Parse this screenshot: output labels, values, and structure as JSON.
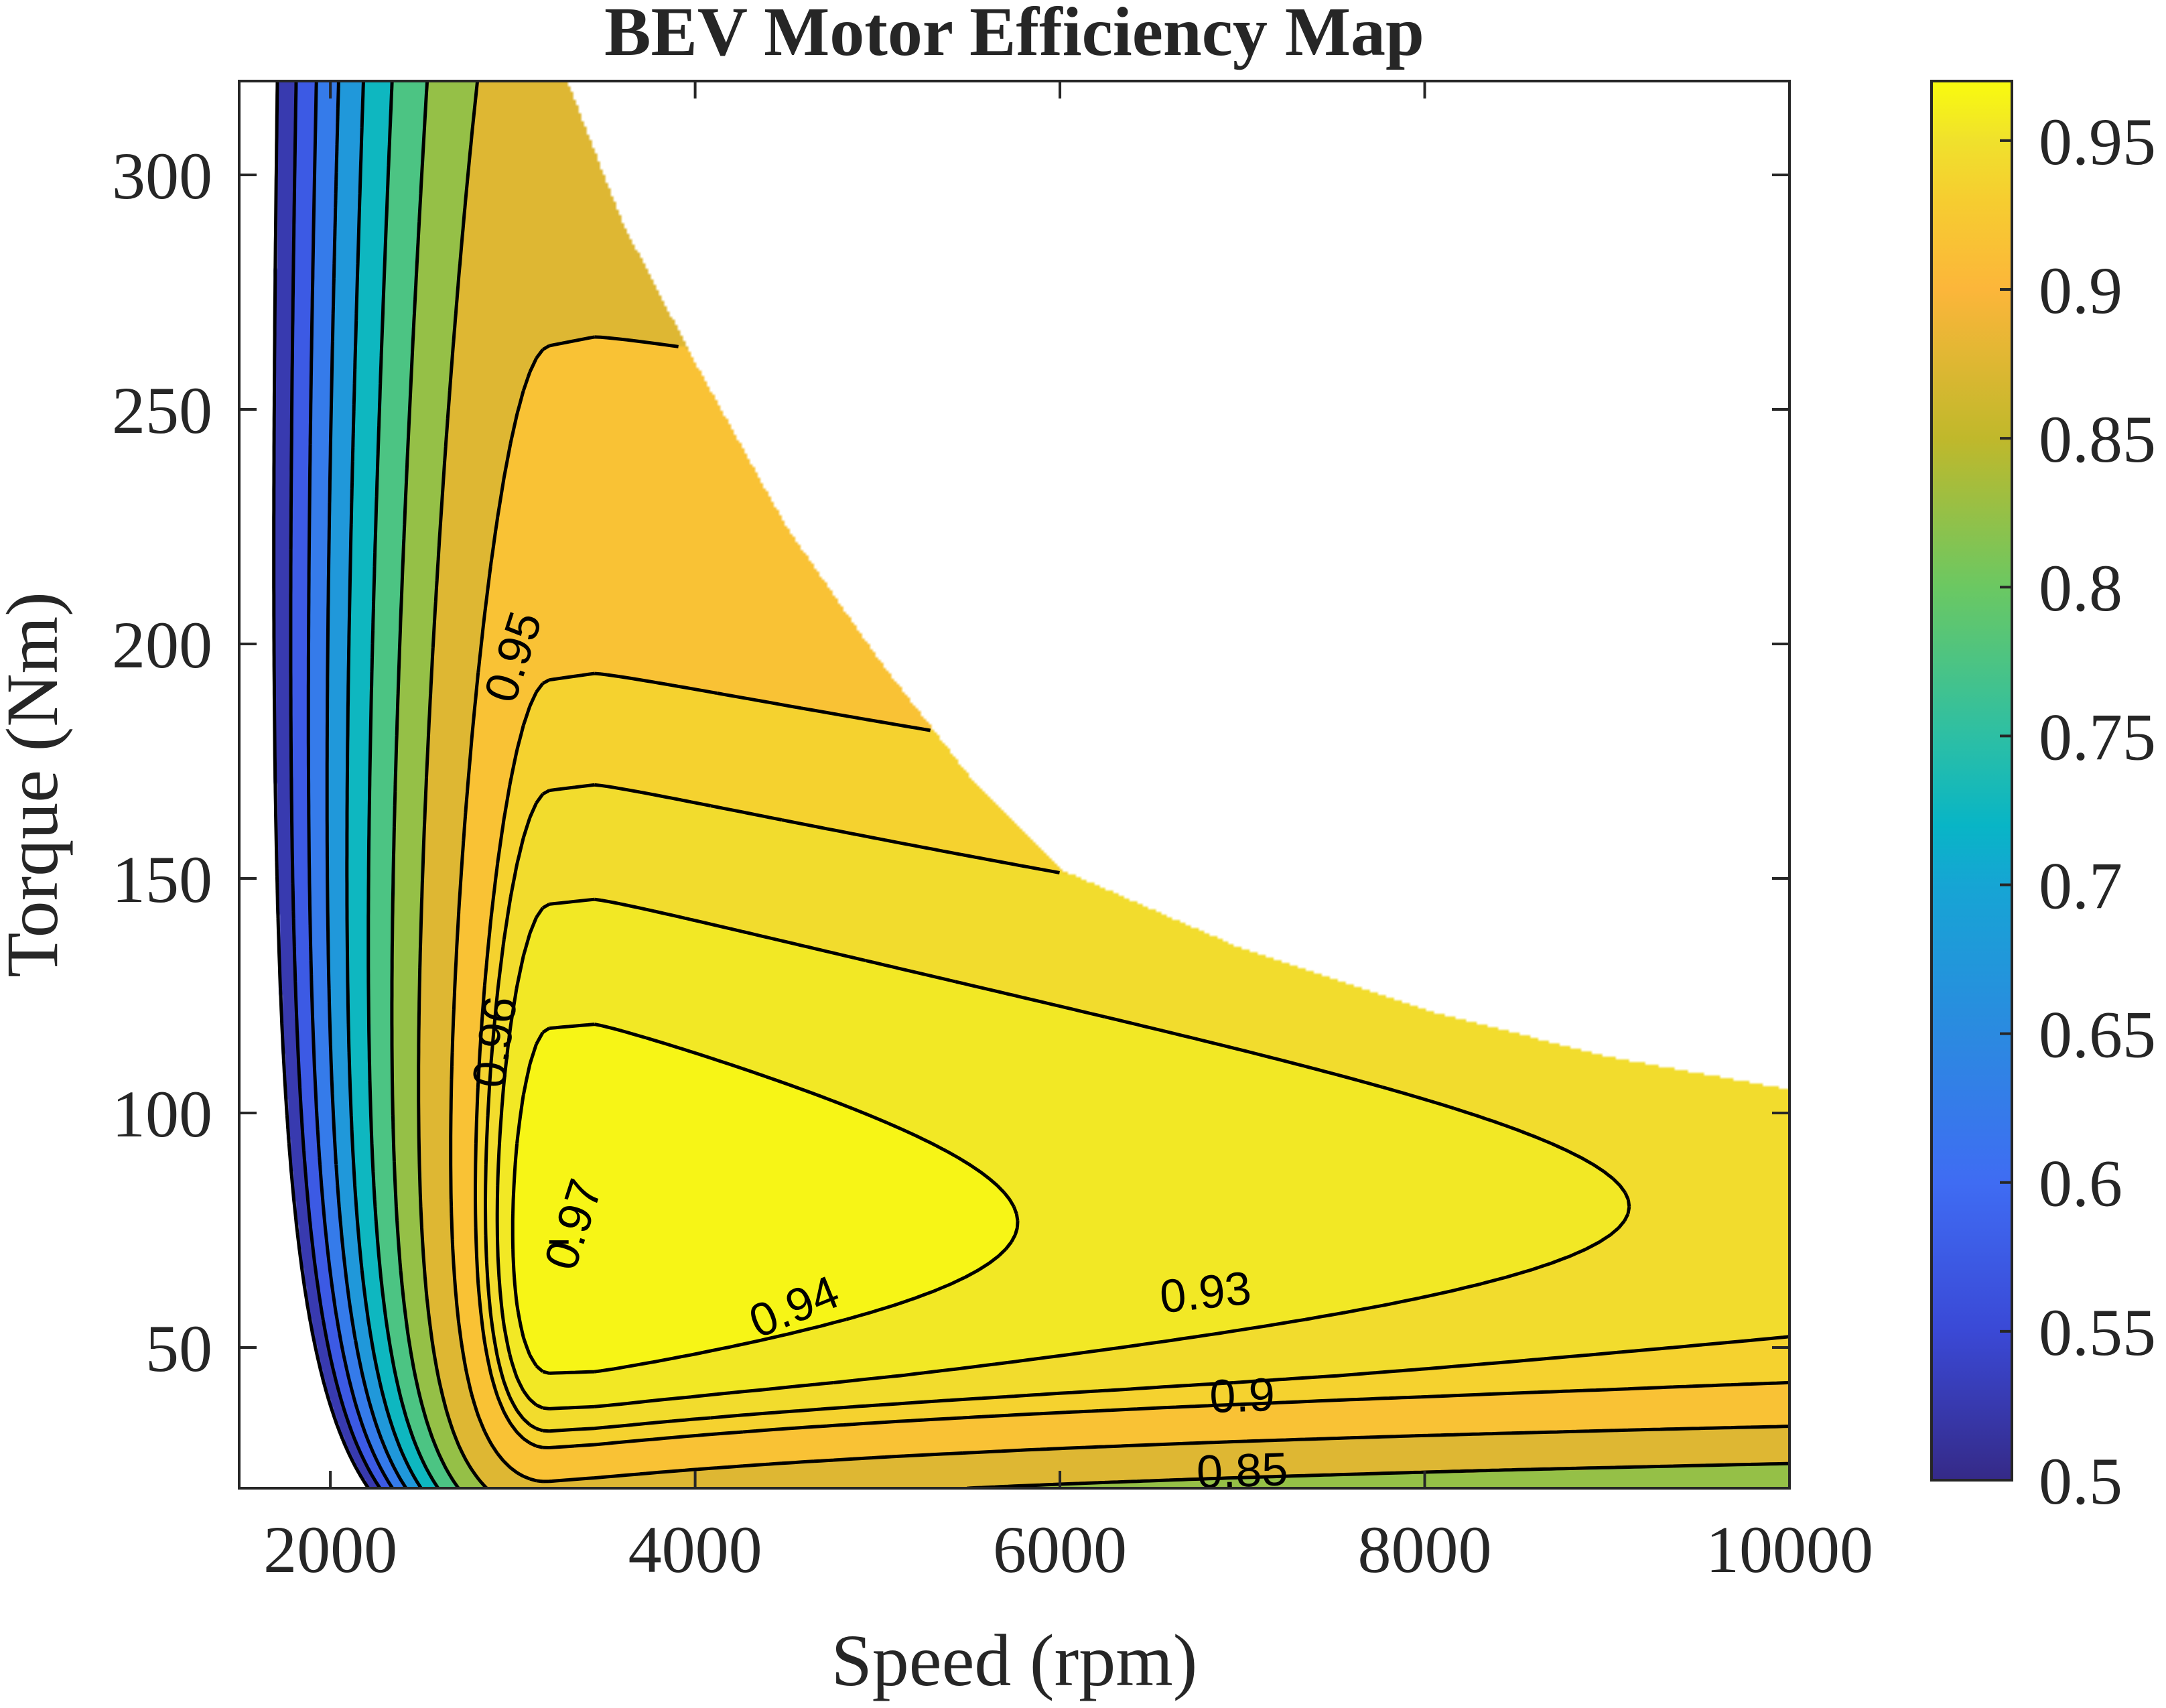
{
  "chart_data": {
    "type": "contour",
    "title": "BEV Motor Efficiency Map",
    "xlabel": "Speed (rpm)",
    "ylabel": "Torque (Nm)",
    "xlim": [
      1500,
      10000
    ],
    "ylim": [
      20,
      320
    ],
    "xticks": [
      2000,
      4000,
      6000,
      8000,
      10000
    ],
    "yticks": [
      50,
      100,
      150,
      200,
      250,
      300
    ],
    "grid": false,
    "colorbar": {
      "range": [
        0.5,
        0.97
      ],
      "ticks": [
        0.5,
        0.55,
        0.6,
        0.65,
        0.7,
        0.75,
        0.8,
        0.85,
        0.9,
        0.95
      ],
      "tick_labels": [
        "0.5",
        "0.55",
        "0.6",
        "0.65",
        "0.7",
        "0.75",
        "0.8",
        "0.85",
        "0.9",
        "0.95"
      ],
      "colormap": "parula",
      "colormap_stops": [
        {
          "v": 0.5,
          "color": "#352a87"
        },
        {
          "v": 0.55,
          "color": "#3a49d6"
        },
        {
          "v": 0.6,
          "color": "#3f6cf3"
        },
        {
          "v": 0.65,
          "color": "#2b8ae0"
        },
        {
          "v": 0.7,
          "color": "#16a5d4"
        },
        {
          "v": 0.72,
          "color": "#08b5c6"
        },
        {
          "v": 0.75,
          "color": "#2dbfa4"
        },
        {
          "v": 0.8,
          "color": "#6bc862"
        },
        {
          "v": 0.85,
          "color": "#c0b82b"
        },
        {
          "v": 0.9,
          "color": "#fcb63a"
        },
        {
          "v": 0.93,
          "color": "#f6cd30"
        },
        {
          "v": 0.95,
          "color": "#f0e12c"
        },
        {
          "v": 0.97,
          "color": "#f9fb0e"
        }
      ]
    },
    "contour_levels": [
      0.5,
      0.55,
      0.6,
      0.65,
      0.7,
      0.75,
      0.8,
      0.85,
      0.9,
      0.93,
      0.94,
      0.95,
      0.96,
      0.97
    ],
    "contour_labels": [
      "0.97",
      "0.96",
      "0.95",
      "0.94",
      "0.93",
      "0.9",
      "0.85"
    ],
    "max_torque_envelope": {
      "speed_rpm": [
        3300,
        3600,
        4000,
        4500,
        5000,
        5500,
        6000,
        7000,
        8000,
        9000,
        10000
      ],
      "torque_nm": [
        320,
        290,
        260,
        225,
        197,
        172,
        152,
        135,
        122,
        112,
        105
      ]
    },
    "peak_efficiency": {
      "speed_rpm": 3450,
      "torque_nm": 73,
      "efficiency": 0.97
    }
  }
}
